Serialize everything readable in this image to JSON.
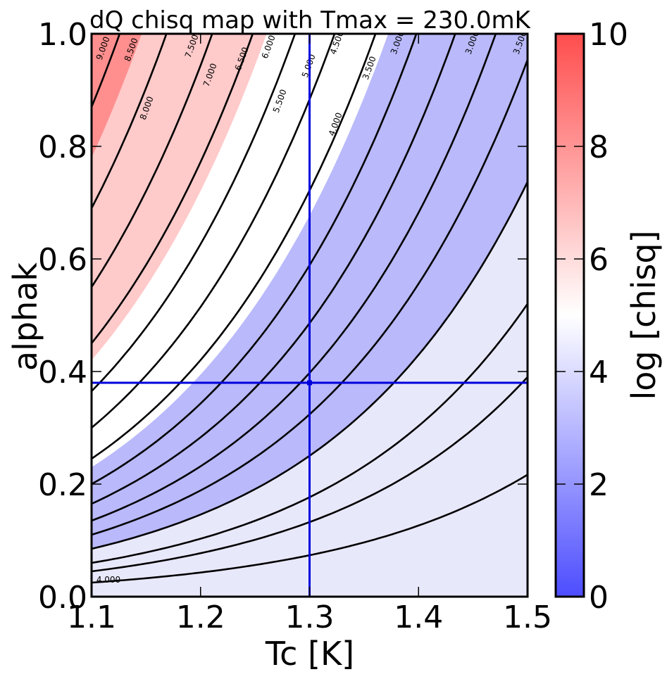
{
  "chart_data": {
    "type": "heatmap",
    "title": "dQ chisq map with Tmax = 230.0mK",
    "xlabel": "Tc [K]",
    "ylabel": "alphak",
    "xlim": [
      1.1,
      1.5
    ],
    "ylim": [
      0.0,
      1.0
    ],
    "x_ticks": [
      "1.1",
      "1.2",
      "1.3",
      "1.4",
      "1.5"
    ],
    "y_ticks": [
      "0.0",
      "0.2",
      "0.4",
      "0.6",
      "0.8",
      "1.0"
    ],
    "colorbar": {
      "label": "log [chisq]",
      "range": [
        0,
        10
      ],
      "ticks": [
        "0",
        "2",
        "4",
        "6",
        "8",
        "10"
      ],
      "low_color": "#4d4dff",
      "mid_color": "#ffffff",
      "high_color": "#ff4d4d"
    },
    "best_fit": {
      "Tc": 1.3,
      "alphak": 0.38,
      "color": "#0000dd"
    },
    "contour_labels": [
      "9.000",
      "8.500",
      "8.000",
      "7.500",
      "7.000",
      "6.500",
      "6.000",
      "5.500",
      "5.000",
      "4.500",
      "4.000",
      "3.500",
      "3.000",
      "3.000",
      "3.500",
      "4.000"
    ],
    "contour_curves": [
      {
        "y0": 0.87
      },
      {
        "y0": 0.69
      },
      {
        "y0": 0.55
      },
      {
        "y0": 0.45
      },
      {
        "y0": 0.365
      },
      {
        "y0": 0.3
      },
      {
        "y0": 0.245
      },
      {
        "y0": 0.2
      },
      {
        "y0": 0.165
      },
      {
        "y0": 0.135
      },
      {
        "y0": 0.11
      },
      {
        "y0": 0.085
      },
      {
        "y0": 0.06
      },
      {
        "y0": 0.045
      },
      {
        "y0": 0.025
      }
    ]
  }
}
